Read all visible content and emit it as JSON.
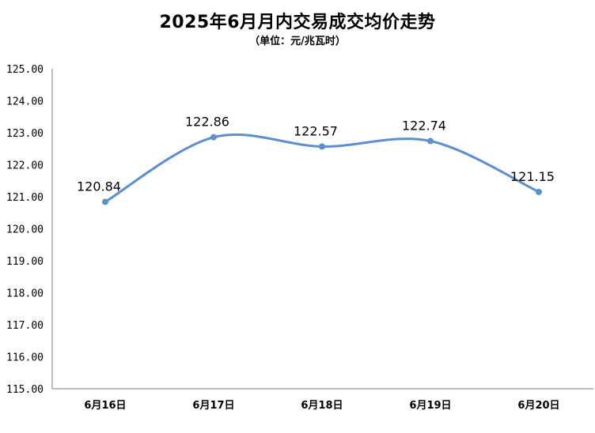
{
  "chart_data": {
    "type": "line",
    "title": "2025年6月月内交易成交均价走势",
    "subtitle": "（单位：元/兆瓦时）",
    "categories": [
      "6月16日",
      "6月17日",
      "6月18日",
      "6月19日",
      "6月20日"
    ],
    "series": [
      {
        "values": [
          120.84,
          122.86,
          122.57,
          122.74,
          121.15
        ]
      }
    ],
    "data_labels": [
      "120.84",
      "122.86",
      "122.57",
      "122.74",
      "121.15"
    ],
    "y_ticks": [
      "115.00",
      "116.00",
      "117.00",
      "118.00",
      "119.00",
      "120.00",
      "121.00",
      "122.00",
      "123.00",
      "124.00",
      "125.00"
    ],
    "ylim": [
      115,
      125
    ],
    "line_color": "#5b8fd0",
    "smooth": true,
    "grid": false,
    "legend": "none"
  }
}
